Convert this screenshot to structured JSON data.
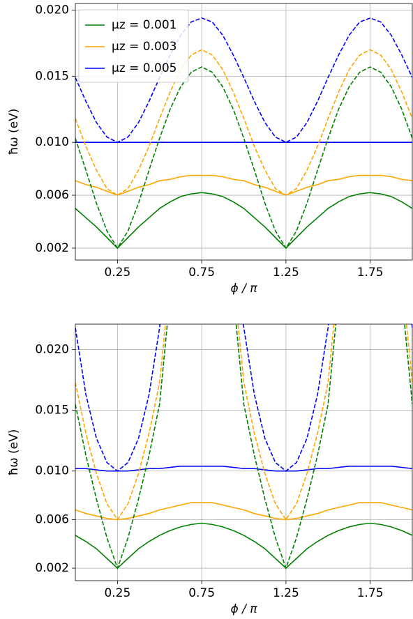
{
  "chart_data": [
    {
      "type": "line",
      "xlabel": "ϕ / π",
      "ylabel": "ħω (eV)",
      "x": [
        0,
        0.0625,
        0.125,
        0.1875,
        0.25,
        0.3125,
        0.375,
        0.4375,
        0.5,
        0.5625,
        0.625,
        0.6875,
        0.75,
        0.8125,
        0.875,
        0.9375,
        1,
        1.0625,
        1.125,
        1.1875,
        1.25,
        1.3125,
        1.375,
        1.4375,
        1.5,
        1.5625,
        1.625,
        1.6875,
        1.75,
        1.8125,
        1.875,
        1.9375,
        2
      ],
      "xlim": [
        0,
        2
      ],
      "xticks": [
        0.25,
        0.75,
        1.25,
        1.75
      ],
      "ylim": [
        0.0011,
        0.0205
      ],
      "yticks": [
        0.002,
        0.006,
        {
          "value": 0.01,
          "label": "0.010"
        },
        0.015,
        {
          "value": 0.02,
          "label": "0.020"
        }
      ],
      "grid": true,
      "legend": "upper left",
      "series": [
        {
          "name": "μz = 0.001",
          "color": "#008000",
          "values": [
            0.005,
            0.0043,
            0.0036,
            0.0028,
            0.002,
            0.0028,
            0.0036,
            0.0043,
            0.005,
            0.0055,
            0.0059,
            0.0061,
            0.0062,
            0.0061,
            0.0059,
            0.0055,
            0.005,
            0.0043,
            0.0036,
            0.0028,
            0.002,
            0.0028,
            0.0036,
            0.0043,
            0.005,
            0.0055,
            0.0059,
            0.0061,
            0.0062,
            0.0061,
            0.0059,
            0.0055,
            0.005
          ]
        },
        {
          "name": "μz = 0.003",
          "color": "#ffa500",
          "values": [
            0.0071,
            0.0068,
            0.0066,
            0.0063,
            0.006,
            0.0063,
            0.0066,
            0.0068,
            0.0071,
            0.0072,
            0.0074,
            0.0075,
            0.0075,
            0.0075,
            0.0074,
            0.0072,
            0.0071,
            0.0068,
            0.0066,
            0.0063,
            0.006,
            0.0063,
            0.0066,
            0.0068,
            0.0071,
            0.0072,
            0.0074,
            0.0075,
            0.0075,
            0.0075,
            0.0074,
            0.0072,
            0.0071
          ]
        },
        {
          "name": "μz = 0.005",
          "color": "#0000ff",
          "values": [
            0.01,
            0.01,
            0.01,
            0.01,
            0.01,
            0.01,
            0.01,
            0.01,
            0.01,
            0.01,
            0.01,
            0.01,
            0.01,
            0.01,
            0.01,
            0.01,
            0.01,
            0.01,
            0.01,
            0.01,
            0.01,
            0.01,
            0.01,
            0.01,
            0.01,
            0.01,
            0.01,
            0.01,
            0.01,
            0.01,
            0.01,
            0.01,
            0.01
          ]
        },
        {
          "color": "#008000",
          "dashed": true,
          "values": [
            0.0103,
            0.0079,
            0.0054,
            0.0033,
            0.002,
            0.0033,
            0.0054,
            0.0079,
            0.0103,
            0.0125,
            0.0142,
            0.0153,
            0.0157,
            0.0153,
            0.0142,
            0.0125,
            0.0103,
            0.0079,
            0.0054,
            0.0033,
            0.002,
            0.0033,
            0.0054,
            0.0079,
            0.0103,
            0.0125,
            0.0142,
            0.0153,
            0.0157,
            0.0153,
            0.0142,
            0.0125,
            0.0103
          ]
        },
        {
          "color": "#ffa500",
          "dashed": true,
          "values": [
            0.0118,
            0.0097,
            0.0079,
            0.0065,
            0.006,
            0.0065,
            0.0079,
            0.0097,
            0.0118,
            0.0138,
            0.0155,
            0.0166,
            0.017,
            0.0166,
            0.0155,
            0.0138,
            0.0118,
            0.0097,
            0.0079,
            0.0065,
            0.006,
            0.0065,
            0.0079,
            0.0097,
            0.0118,
            0.0138,
            0.0155,
            0.0166,
            0.017,
            0.0166,
            0.0155,
            0.0138,
            0.0118
          ]
        },
        {
          "color": "#0000ff",
          "dashed": true,
          "values": [
            0.0149,
            0.0131,
            0.0115,
            0.0104,
            0.01,
            0.0104,
            0.0115,
            0.0131,
            0.0149,
            0.0166,
            0.0181,
            0.0191,
            0.0194,
            0.0191,
            0.0181,
            0.0166,
            0.0149,
            0.0131,
            0.0115,
            0.0104,
            0.01,
            0.0104,
            0.0115,
            0.0131,
            0.0149,
            0.0166,
            0.0181,
            0.0191,
            0.0194,
            0.0191,
            0.0181,
            0.0166,
            0.0149
          ]
        }
      ]
    },
    {
      "type": "line",
      "xlabel": "ϕ / π",
      "ylabel": "ħω (eV)",
      "x": [
        0,
        0.0625,
        0.125,
        0.1875,
        0.25,
        0.3125,
        0.375,
        0.4375,
        0.5,
        0.5625,
        0.625,
        0.6875,
        0.75,
        0.8125,
        0.875,
        0.9375,
        1,
        1.0625,
        1.125,
        1.1875,
        1.25,
        1.3125,
        1.375,
        1.4375,
        1.5,
        1.5625,
        1.625,
        1.6875,
        1.75,
        1.8125,
        1.875,
        1.9375,
        2
      ],
      "xlim": [
        0,
        2
      ],
      "xticks": [
        0.25,
        0.75,
        1.25,
        1.75
      ],
      "ylim": [
        0.00097,
        0.0221
      ],
      "yticks": [
        0.002,
        0.006,
        {
          "value": 0.01,
          "label": "0.010"
        },
        0.015,
        {
          "value": 0.02,
          "label": "0.020"
        }
      ],
      "grid": true,
      "series": [
        {
          "color": "#008000",
          "values": [
            0.0047,
            0.0042,
            0.0036,
            0.0028,
            0.002,
            0.0028,
            0.0036,
            0.0042,
            0.0047,
            0.0051,
            0.0054,
            0.0056,
            0.0057,
            0.0056,
            0.0054,
            0.0051,
            0.0047,
            0.0042,
            0.0036,
            0.0028,
            0.002,
            0.0028,
            0.0036,
            0.0042,
            0.0047,
            0.0051,
            0.0054,
            0.0056,
            0.0057,
            0.0056,
            0.0054,
            0.0051,
            0.0047
          ]
        },
        {
          "color": "#ffa500",
          "values": [
            0.0068,
            0.0065,
            0.0063,
            0.0061,
            0.006,
            0.0061,
            0.0063,
            0.0065,
            0.0068,
            0.007,
            0.0072,
            0.0074,
            0.0074,
            0.0074,
            0.0072,
            0.007,
            0.0068,
            0.0065,
            0.0063,
            0.0061,
            0.006,
            0.0061,
            0.0063,
            0.0065,
            0.0068,
            0.007,
            0.0072,
            0.0074,
            0.0074,
            0.0074,
            0.0072,
            0.007,
            0.0068
          ]
        },
        {
          "color": "#0000ff",
          "values": [
            0.0102,
            0.0102,
            0.0101,
            0.01,
            0.01,
            0.01,
            0.0101,
            0.0102,
            0.0102,
            0.0103,
            0.0104,
            0.0104,
            0.0104,
            0.0104,
            0.0104,
            0.0103,
            0.0102,
            0.0102,
            0.0101,
            0.01,
            0.01,
            0.01,
            0.0101,
            0.0102,
            0.0102,
            0.0103,
            0.0104,
            0.0104,
            0.0104,
            0.0104,
            0.0104,
            0.0103,
            0.0102
          ]
        },
        {
          "color": "#008000",
          "dashed": true,
          "values": [
            0.0155,
            0.0113,
            0.0077,
            0.0045,
            0.002,
            0.0045,
            0.0077,
            0.0113,
            0.0155,
            0.0245,
            null,
            null,
            null,
            null,
            null,
            0.0245,
            0.0155,
            0.0113,
            0.0077,
            0.0045,
            0.002,
            0.0045,
            0.0077,
            0.0113,
            0.0155,
            0.0245,
            null,
            null,
            null,
            null,
            null,
            0.0245,
            0.0155
          ]
        },
        {
          "color": "#ffa500",
          "dashed": true,
          "values": [
            0.0173,
            0.0131,
            0.0098,
            0.0073,
            0.006,
            0.0073,
            0.0098,
            0.0131,
            0.0173,
            0.026,
            null,
            null,
            null,
            null,
            null,
            0.026,
            0.0173,
            0.0131,
            0.0098,
            0.0073,
            0.006,
            0.0073,
            0.0098,
            0.0131,
            0.0173,
            0.026,
            null,
            null,
            null,
            null,
            null,
            0.026,
            0.0173
          ]
        },
        {
          "color": "#0000ff",
          "dashed": true,
          "values": [
            0.0218,
            0.0163,
            0.0127,
            0.0107,
            0.01,
            0.0107,
            0.0127,
            0.0163,
            0.0218,
            0.03,
            null,
            null,
            null,
            null,
            null,
            0.03,
            0.0218,
            0.0163,
            0.0127,
            0.0107,
            0.01,
            0.0107,
            0.0127,
            0.0163,
            0.0218,
            0.03,
            null,
            null,
            null,
            null,
            null,
            0.03,
            0.0218
          ]
        }
      ]
    }
  ]
}
